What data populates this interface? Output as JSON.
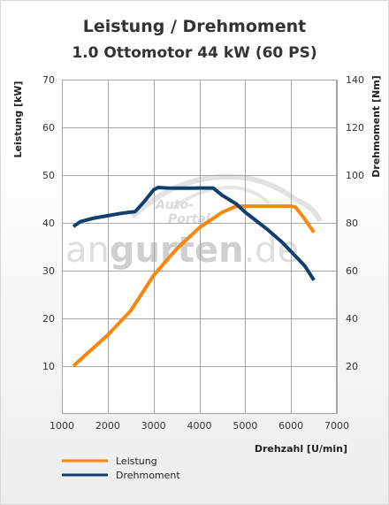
{
  "chart_data": {
    "type": "line",
    "title": "Leistung / Drehmoment",
    "subtitle": "1.0 Ottomotor 44 kW (60 PS)",
    "xlabel": "Drehzahl [U/min]",
    "ylabel_left": "Leistung [kW]",
    "ylabel_right": "Drehmoment [Nm]",
    "xlim": [
      1000,
      7000
    ],
    "ylim_left": [
      0,
      70
    ],
    "ylim_right": [
      0,
      140
    ],
    "x_ticks": [
      1000,
      2000,
      3000,
      4000,
      5000,
      6000,
      7000
    ],
    "y_left_ticks": [
      10,
      20,
      30,
      40,
      50,
      60,
      70
    ],
    "y_right_ticks": [
      20,
      40,
      60,
      80,
      100,
      120,
      140
    ],
    "grid": true,
    "legend_position": "bottom-left",
    "series": [
      {
        "name": "Leistung",
        "axis": "left",
        "color": "#f7870e",
        "x": [
          1250,
          1500,
          2000,
          2500,
          2800,
          3000,
          3500,
          4000,
          4500,
          4800,
          5000,
          5500,
          6000,
          6100,
          6300,
          6500
        ],
        "y": [
          10,
          12.2,
          16.5,
          21.6,
          26,
          29,
          34.5,
          39,
          42.2,
          43.5,
          43.5,
          43.5,
          43.5,
          43.3,
          40.8,
          38
        ]
      },
      {
        "name": "Drehmoment",
        "axis": "right",
        "color": "#113f6d",
        "x": [
          1250,
          1400,
          1700,
          2000,
          2300,
          2500,
          2600,
          2800,
          3000,
          3100,
          3300,
          3500,
          3800,
          4000,
          4300,
          4500,
          4800,
          5000,
          5300,
          5500,
          5800,
          6000,
          6300,
          6500
        ],
        "y": [
          78.5,
          80.5,
          82,
          83,
          84,
          84.5,
          84.7,
          89,
          93.8,
          94.8,
          94.6,
          94.5,
          94.5,
          94.6,
          94.6,
          91.5,
          88,
          84.5,
          80,
          77,
          72,
          68,
          62,
          56
        ]
      }
    ]
  },
  "watermark": {
    "line1": "Auto-",
    "line2": "Portal",
    "word_a": "an",
    "word_b": "gurten",
    "word_c": ".de"
  }
}
